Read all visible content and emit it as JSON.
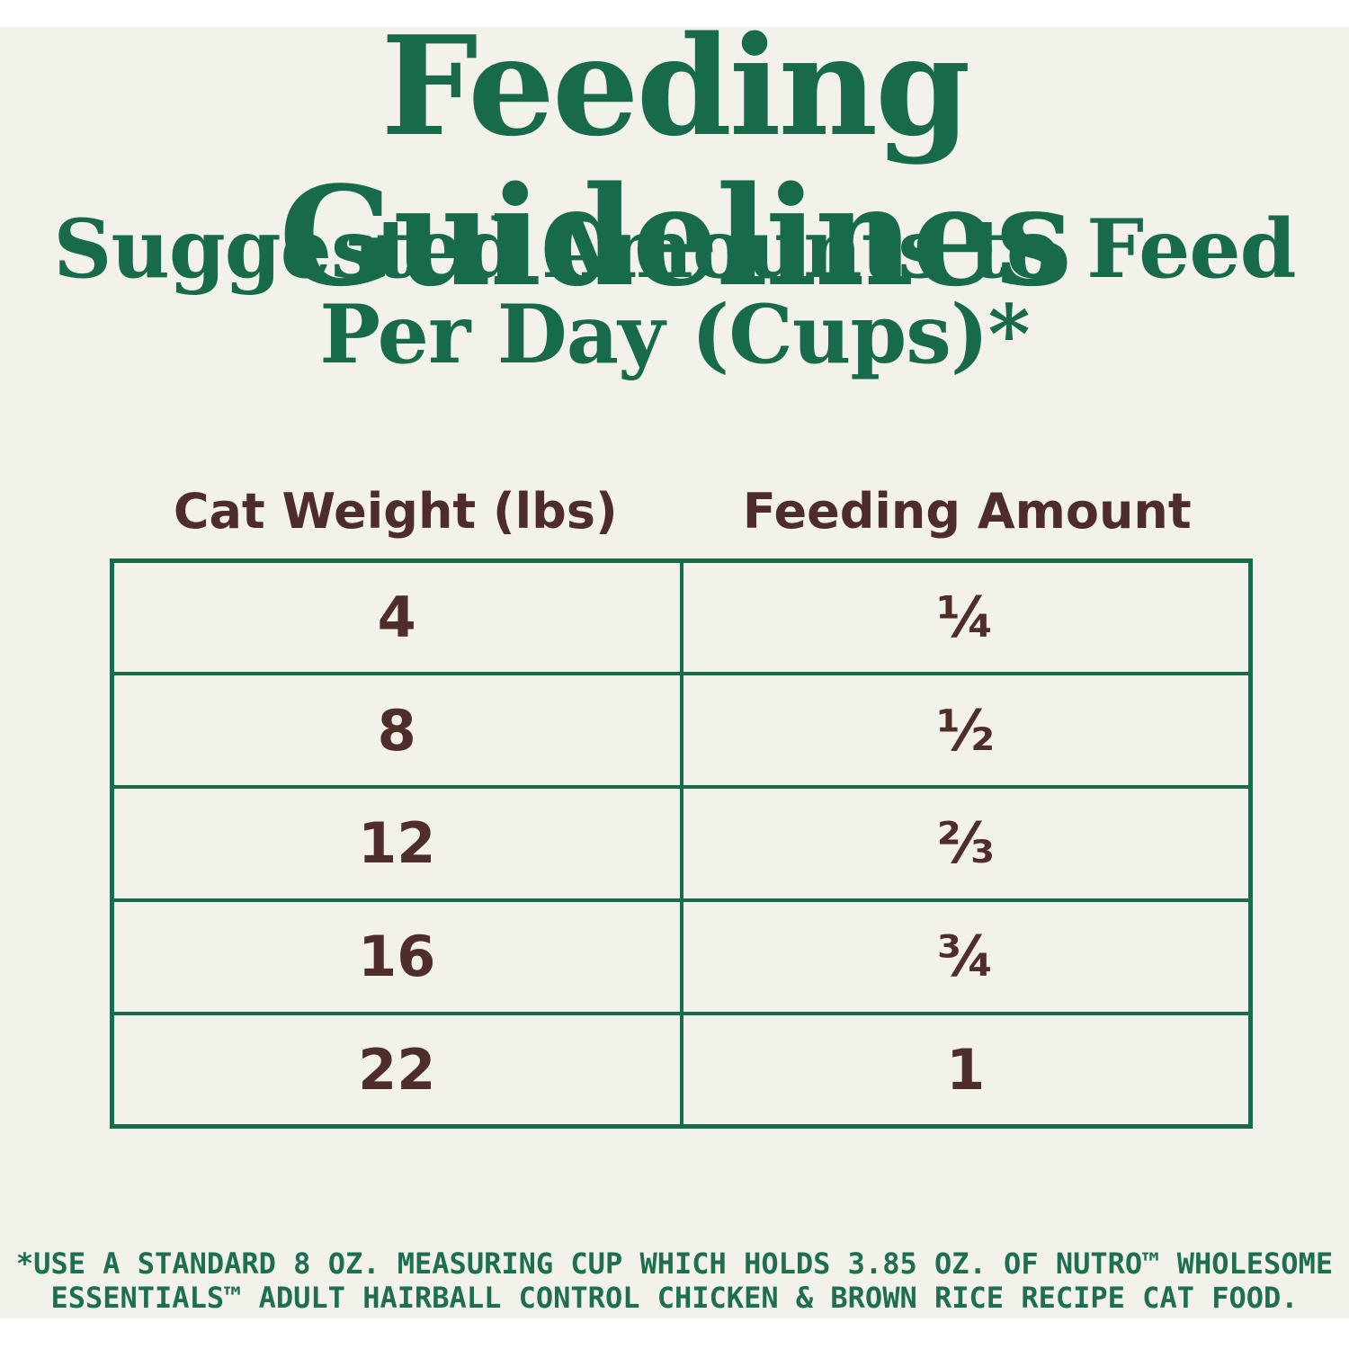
{
  "page": {
    "title": "Feeding Guidelines",
    "subtitle_line1": "Suggested Amounts to Feed",
    "subtitle_line2": "Per Day (Cups)*"
  },
  "table": {
    "columns": [
      "Cat Weight (lbs)",
      "Feeding Amount"
    ],
    "rows": [
      {
        "weight": "4",
        "amount": "¼"
      },
      {
        "weight": "8",
        "amount": "½"
      },
      {
        "weight": "12",
        "amount": "⅔"
      },
      {
        "weight": "16",
        "amount": "¾"
      },
      {
        "weight": "22",
        "amount": "1"
      }
    ]
  },
  "footnote": {
    "line1": "*USE A STANDARD 8 OZ. MEASURING CUP WHICH HOLDS 3.85 OZ. OF NUTRO™ WHOLESOME",
    "line2": "ESSENTIALS™ ADULT HAIRBALL CONTROL CHICKEN & BROWN RICE RECIPE CAT FOOD."
  },
  "colors": {
    "heading_green": "#176A4A",
    "table_border_green": "#186B4B",
    "text_brown": "#4F2D2B",
    "background_cream": "#F2F2EA",
    "band_white": "#FFFFFF"
  }
}
